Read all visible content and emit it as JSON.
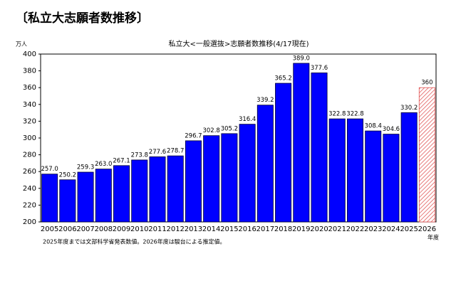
{
  "header": {
    "title": "〔私立大志願者数推移〕"
  },
  "chart_data": {
    "type": "bar",
    "title": "私立大<一般選抜>志願者数推移(4/17現在)",
    "y_axis_label": "万人",
    "x_axis_label": "年度",
    "note": "2025年度までは文部科学省発表数値。2026年度は駿台による推定値。",
    "categories": [
      "2005",
      "2006",
      "2007",
      "2008",
      "2009",
      "2010",
      "2011",
      "2012",
      "2013",
      "2014",
      "2015",
      "2016",
      "2017",
      "2018",
      "2019",
      "2020",
      "2021",
      "2022",
      "2023",
      "2024",
      "2025",
      "2026"
    ],
    "values": [
      257.0,
      250.2,
      259.3,
      263.0,
      267.1,
      273.8,
      277.6,
      278.7,
      296.7,
      302.8,
      305.2,
      316.4,
      339.2,
      365.2,
      389.0,
      377.6,
      322.8,
      322.8,
      308.4,
      304.6,
      330.2,
      360
    ],
    "value_labels": [
      "257.0",
      "250.2",
      "259.3",
      "263.0",
      "267.1",
      "273.8",
      "277.6",
      "278.7",
      "296.7",
      "302.8",
      "305.2",
      "316.4",
      "339.2",
      "365.2",
      "389.0",
      "377.6",
      "322.8",
      "322.8",
      "308.4",
      "304.6",
      "330.2",
      "360"
    ],
    "colors": [
      "#0000ff",
      "#0000ff",
      "#0000ff",
      "#0000ff",
      "#0000ff",
      "#0000ff",
      "#0000ff",
      "#0000ff",
      "#0000ff",
      "#0000ff",
      "#0000ff",
      "#0000ff",
      "#0000ff",
      "#0000ff",
      "#0000ff",
      "#0000ff",
      "#0000ff",
      "#0000ff",
      "#0000ff",
      "#0000ff",
      "#0000ff",
      "#e05050"
    ],
    "hatched": [
      false,
      false,
      false,
      false,
      false,
      false,
      false,
      false,
      false,
      false,
      false,
      false,
      false,
      false,
      false,
      false,
      false,
      false,
      false,
      false,
      false,
      true
    ],
    "ylim": [
      200,
      400
    ],
    "yticks": [
      200,
      220,
      240,
      260,
      280,
      300,
      320,
      340,
      360,
      380,
      400
    ],
    "grid": false
  }
}
